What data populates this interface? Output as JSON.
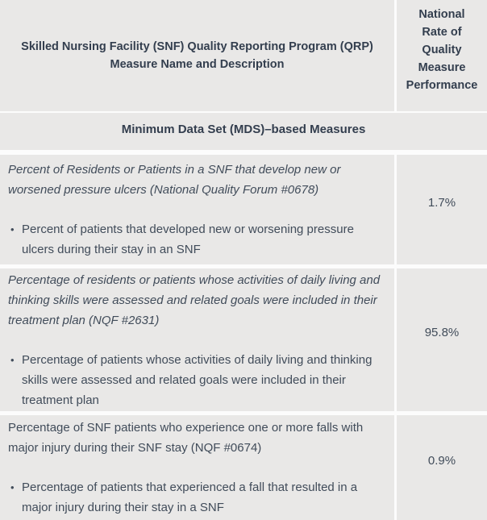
{
  "table": {
    "header": {
      "left": "Skilled Nursing Facility (SNF) Quality Reporting Program (QRP) Measure Name and Description",
      "right": "National Rate of Quality Measure Performance"
    },
    "section_label": "Minimum Data Set (MDS)–based Measures",
    "bullet_glyph": "•",
    "rows": [
      {
        "title": "Percent of Residents or Patients in a SNF that develop new or worsened pressure ulcers (National Quality Forum #0678)",
        "bullet": "Percent of patients that developed new or worsening pressure ulcers during their stay in an SNF",
        "rate": "1.7%"
      },
      {
        "title": "Percentage of residents or patients whose activities of daily living and thinking skills were assessed and related goals were included in their treatment plan (NQF #2631)",
        "bullet": "Percentage of patients whose activities of daily living and thinking skills were assessed and related goals were included in their treatment plan",
        "rate": "95.8%"
      },
      {
        "title": "Percentage of SNF patients who experience one or more falls with major injury during their SNF stay (NQF #0674)",
        "bullet": "Percentage of patients that experienced a fall that resulted in a major injury during their stay in a SNF",
        "rate": "0.9%"
      }
    ],
    "colors": {
      "row_background": "#e9e8e7",
      "separator": "#fcfcfc",
      "body_text": "#414c5a",
      "heading_text": "#333e4e"
    }
  }
}
